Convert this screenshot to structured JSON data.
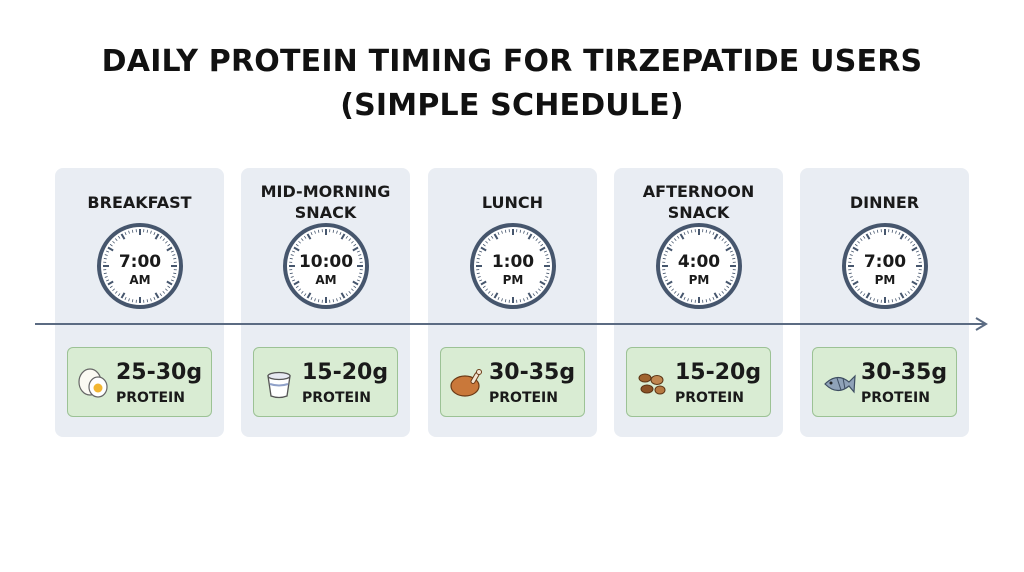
{
  "header": {
    "title_lines": [
      "DAILY PROTEIN TIMING FOR TIRZEPATIDE USERS",
      "(SIMPLE SCHEDULE)"
    ]
  },
  "meals": [
    {
      "name": "BREAKFAST",
      "time": "7:00",
      "period": "AM",
      "amount": "25-30g",
      "label": "PROTEIN"
    },
    {
      "name": "MID-MORNING SNACK",
      "time": "10:00",
      "period": "AM",
      "amount": "15-20g",
      "label": "PROTEIN"
    },
    {
      "name": "LUNCH",
      "time": "1:00",
      "period": "PM",
      "amount": "30-35g",
      "label": "PROTEIN"
    },
    {
      "name": "AFTERNOON SNACK",
      "time": "4:00",
      "period": "PM",
      "amount": "15-20g",
      "label": "PROTEIN"
    },
    {
      "name": "DINNER",
      "time": "7:00",
      "period": "PM",
      "amount": "30-35g",
      "label": "PROTEIN"
    }
  ]
}
